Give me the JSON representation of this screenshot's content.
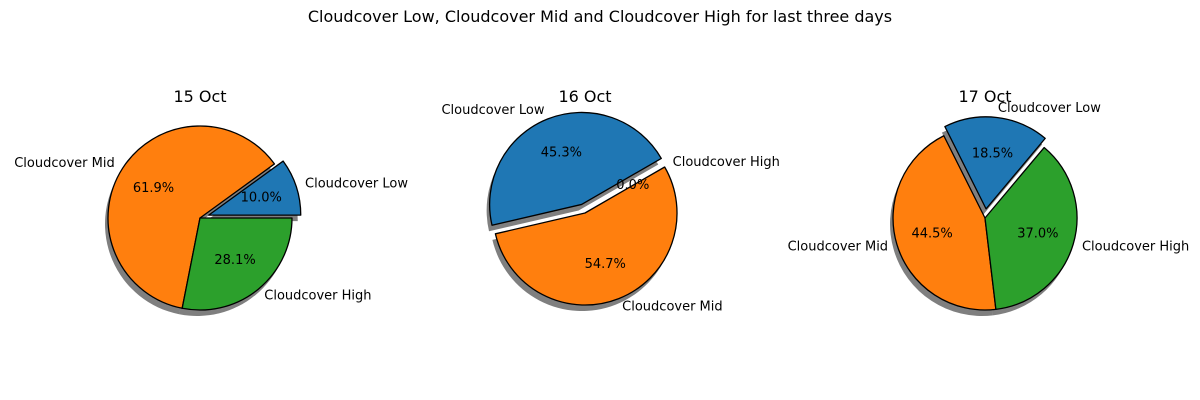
{
  "chart_data": {
    "type": "pie",
    "title": "Cloudcover Low, Cloudcover Mid and Cloudcover High for last three days",
    "colors": {
      "Cloudcover Low": "#1f77b4",
      "Cloudcover Mid": "#ff7f0e",
      "Cloudcover High": "#2ca02c"
    },
    "charts": [
      {
        "title": "15 Oct",
        "startangle_deg": 0,
        "slices": [
          {
            "label": "Cloudcover Low",
            "value": 10.0,
            "pct_text": "10.0%",
            "exploded": true
          },
          {
            "label": "Cloudcover Mid",
            "value": 61.9,
            "pct_text": "61.9%",
            "exploded": false
          },
          {
            "label": "Cloudcover High",
            "value": 28.1,
            "pct_text": "28.1%",
            "exploded": false
          }
        ]
      },
      {
        "title": "16 Oct",
        "startangle_deg": 30,
        "slices": [
          {
            "label": "Cloudcover Low",
            "value": 45.3,
            "pct_text": "45.3%",
            "exploded": true
          },
          {
            "label": "Cloudcover Mid",
            "value": 54.7,
            "pct_text": "54.7%",
            "exploded": false
          },
          {
            "label": "Cloudcover High",
            "value": 0.0,
            "pct_text": "0.0%",
            "exploded": false
          }
        ]
      },
      {
        "title": "17 Oct",
        "startangle_deg": 50,
        "slices": [
          {
            "label": "Cloudcover Low",
            "value": 18.5,
            "pct_text": "18.5%",
            "exploded": true
          },
          {
            "label": "Cloudcover Mid",
            "value": 44.5,
            "pct_text": "44.5%",
            "exploded": false
          },
          {
            "label": "Cloudcover High",
            "value": 37.0,
            "pct_text": "37.0%",
            "exploded": false
          }
        ]
      }
    ]
  }
}
